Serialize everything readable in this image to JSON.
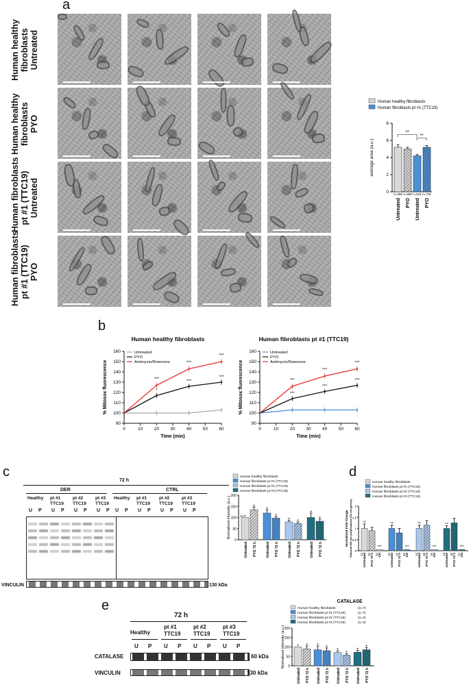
{
  "panels": {
    "a": "a",
    "b": "b",
    "c": "c",
    "d": "d",
    "e": "e"
  },
  "panel_a": {
    "row_labels": [
      [
        "Human healthy",
        "fibroblasts",
        "Untreated"
      ],
      [
        "Human healthy",
        "fibroblasts",
        "PYO"
      ],
      [
        "Human fibroblasts",
        "pt #1 (TTC19)",
        "Untreated"
      ],
      [
        "Human fibroblasts",
        "pt #1 (TTC19)",
        "PYO"
      ]
    ]
  },
  "chart_data": [
    {
      "id": "a-bar",
      "type": "bar",
      "categories": [
        "Untreated",
        "PYO",
        "Untreated",
        "PYO"
      ],
      "values": [
        5.2,
        5.0,
        4.2,
        5.2
      ],
      "errors": [
        0.3,
        0.2,
        0.15,
        0.2
      ],
      "n_labels": [
        "n=468",
        "n=589",
        "n=541",
        "n=746"
      ],
      "ylabel": "average area (a.u.)",
      "ylim": [
        0,
        8
      ],
      "yticks": [
        "0",
        "2",
        "4",
        "6",
        "8"
      ],
      "legend": [
        "Human healthy fibroblasts",
        "Human fibroblasts pt #1 (TTC19)"
      ],
      "significance": [
        "**",
        "**"
      ],
      "colors": [
        "#d9d9d9",
        "#d9d9d9",
        "#4a90d9",
        "#4a90d9"
      ]
    },
    {
      "id": "b-left",
      "type": "line",
      "title": "Human healthy fibroblasts",
      "xlabel": "Time (min)",
      "ylabel": "% Mitosox fluorescence",
      "x": [
        0,
        20,
        40,
        60
      ],
      "xticks": [
        "0",
        "10",
        "20",
        "30",
        "40",
        "50",
        "60"
      ],
      "yticks": [
        "90",
        "100",
        "110",
        "120",
        "130",
        "140",
        "150",
        "160"
      ],
      "ylim": [
        90,
        160
      ],
      "series": [
        {
          "name": "Untreated",
          "values": [
            100,
            100,
            100,
            103
          ],
          "color": "#aaaaaa"
        },
        {
          "name": "PYO",
          "values": [
            100,
            117,
            126,
            130
          ],
          "color": "#111111"
        },
        {
          "name": "Antimycin/Rotenone",
          "values": [
            100,
            127,
            143,
            150
          ],
          "color": "#e53030"
        }
      ],
      "stars": [
        "***",
        "*",
        "***",
        "***",
        "***",
        "***"
      ]
    },
    {
      "id": "b-right",
      "type": "line",
      "title": "Human fibroblasts pt #1 (TTC19)",
      "xlabel": "Time (min)",
      "ylabel": "% Mitosox fluorescence",
      "x": [
        0,
        20,
        40,
        60
      ],
      "xticks": [
        "0",
        "10",
        "20",
        "30",
        "40",
        "50",
        "60"
      ],
      "yticks": [
        "90",
        "100",
        "110",
        "120",
        "130",
        "140",
        "150",
        "160"
      ],
      "ylim": [
        90,
        160
      ],
      "series": [
        {
          "name": "Untreated",
          "values": [
            100,
            103,
            103,
            103
          ],
          "color": "#4a90d9"
        },
        {
          "name": "PYO",
          "values": [
            100,
            114,
            121,
            127
          ],
          "color": "#111111"
        },
        {
          "name": "Antimycin/Rotenone",
          "values": [
            100,
            126,
            136,
            143
          ],
          "color": "#e53030"
        }
      ],
      "stars": [
        "***",
        "***",
        "***",
        "***",
        "***",
        "***"
      ]
    },
    {
      "id": "c-bar",
      "type": "bar",
      "categories": [
        "Untreated",
        "PYO 72 h",
        "Untreated",
        "PYO 72 h",
        "Untreated",
        "PYO 72 h",
        "Untreated",
        "PYO 72 h"
      ],
      "values": [
        100,
        135,
        120,
        97,
        80,
        73,
        100,
        83
      ],
      "errors": [
        0,
        12,
        15,
        8,
        7,
        7,
        20,
        10
      ],
      "ylabel": "Normalized intensity (a.u.)",
      "ylim": [
        0,
        200
      ],
      "yticks": [
        "0",
        "50",
        "100",
        "150",
        "200"
      ],
      "legend": [
        "Human healthy fibroblasts",
        "Human fibroblasts pt #1 (TTC19)",
        "Human fibroblasts pt #2 (TTC19)",
        "Human fibroblasts pt #3 (TTC19)"
      ],
      "annotation": "***"
    },
    {
      "id": "d-bar",
      "type": "bar",
      "categories": [
        "Untreated",
        "PYO 72 h",
        "CH",
        "Untreated",
        "PYO 72 h",
        "CH",
        "Untreated",
        "PYO 72 h",
        "CH",
        "Untreated",
        "PYO 72 h",
        "CH"
      ],
      "n_labels": [
        "12",
        "10",
        "23",
        "15",
        "11",
        "26",
        "14",
        "18",
        "15",
        "14",
        "15",
        "12"
      ],
      "values": [
        1.0,
        0.9,
        0.05,
        1.0,
        0.8,
        0.05,
        1.0,
        1.15,
        0.05,
        1.0,
        1.25,
        0.05
      ],
      "errors": [
        0.2,
        0.15,
        0,
        0.15,
        0.2,
        0,
        0.15,
        0.2,
        0,
        0.12,
        0.2,
        0
      ],
      "ylabel": "Normalized Fold Change",
      "ylabel2": "Reduced 590 nm (red)/Oxidized 515 nm (green)",
      "ylim": [
        0,
        2
      ],
      "yticks": [
        "0",
        "0.5",
        "1",
        "1.5",
        "2"
      ],
      "legend": [
        "Human healthy fibroblasts",
        "Human fibroblasts pt #1 (TTC19)",
        "Human fibroblasts pt #2 (TTC19)",
        "Human fibroblasts pt #3 (TTC19)"
      ],
      "ns": "ns"
    },
    {
      "id": "e-bar",
      "type": "bar",
      "title": "CATALASE",
      "categories": [
        "Untreated",
        "PYO 72 h",
        "Untreated",
        "PYO 72 h",
        "Untreated",
        "PYO 72 h",
        "Untreated",
        "PYO 72 h"
      ],
      "values": [
        100,
        90,
        85,
        80,
        70,
        57,
        72,
        85
      ],
      "errors": [
        0,
        15,
        20,
        15,
        10,
        8,
        10,
        12
      ],
      "ylabel": "Normalized intensity (a.u.)",
      "ylim": [
        0,
        200
      ],
      "yticks": [
        "0",
        "50",
        "100",
        "150",
        "200"
      ],
      "legend": [
        "Human healthy fibroblasts",
        "Human fibroblasts pt #1 (TTC19)",
        "Human fibroblasts pt #2 (TTC19)",
        "Human fibroblasts pt #3 (TTC19)"
      ],
      "legend_n": [
        "(n=7)",
        "(n=7)",
        "(n=3)",
        "(n=3)"
      ]
    }
  ],
  "panel_c": {
    "time": "72 h",
    "group_der": "DER",
    "group_ctrl": "CTRL",
    "lanes": [
      "Healthy",
      "pt #1\nTTC19",
      "pt #2\nTTC19",
      "pt #3\nTTC19"
    ],
    "lane_u": "U",
    "lane_p": "P",
    "vinculin": "VINCULIN",
    "kda": "130 kDa"
  },
  "panel_e": {
    "time": "72 h",
    "lanes": [
      "Healthy",
      "pt #1\nTTC19",
      "pt #2\nTTC19",
      "pt #3\nTTC19"
    ],
    "lane_u": "U",
    "lane_p": "P",
    "catalase": "CATALASE",
    "catalase_kda": "60 kDa",
    "vinculin": "VINCULIN",
    "vinculin_kda": "130 kDa"
  },
  "colors": {
    "healthy": "#d9d9d9",
    "pt1": "#4a90d9",
    "pt2": "#a9c8ef",
    "pt3": "#1f6f80",
    "red": "#e53030"
  }
}
